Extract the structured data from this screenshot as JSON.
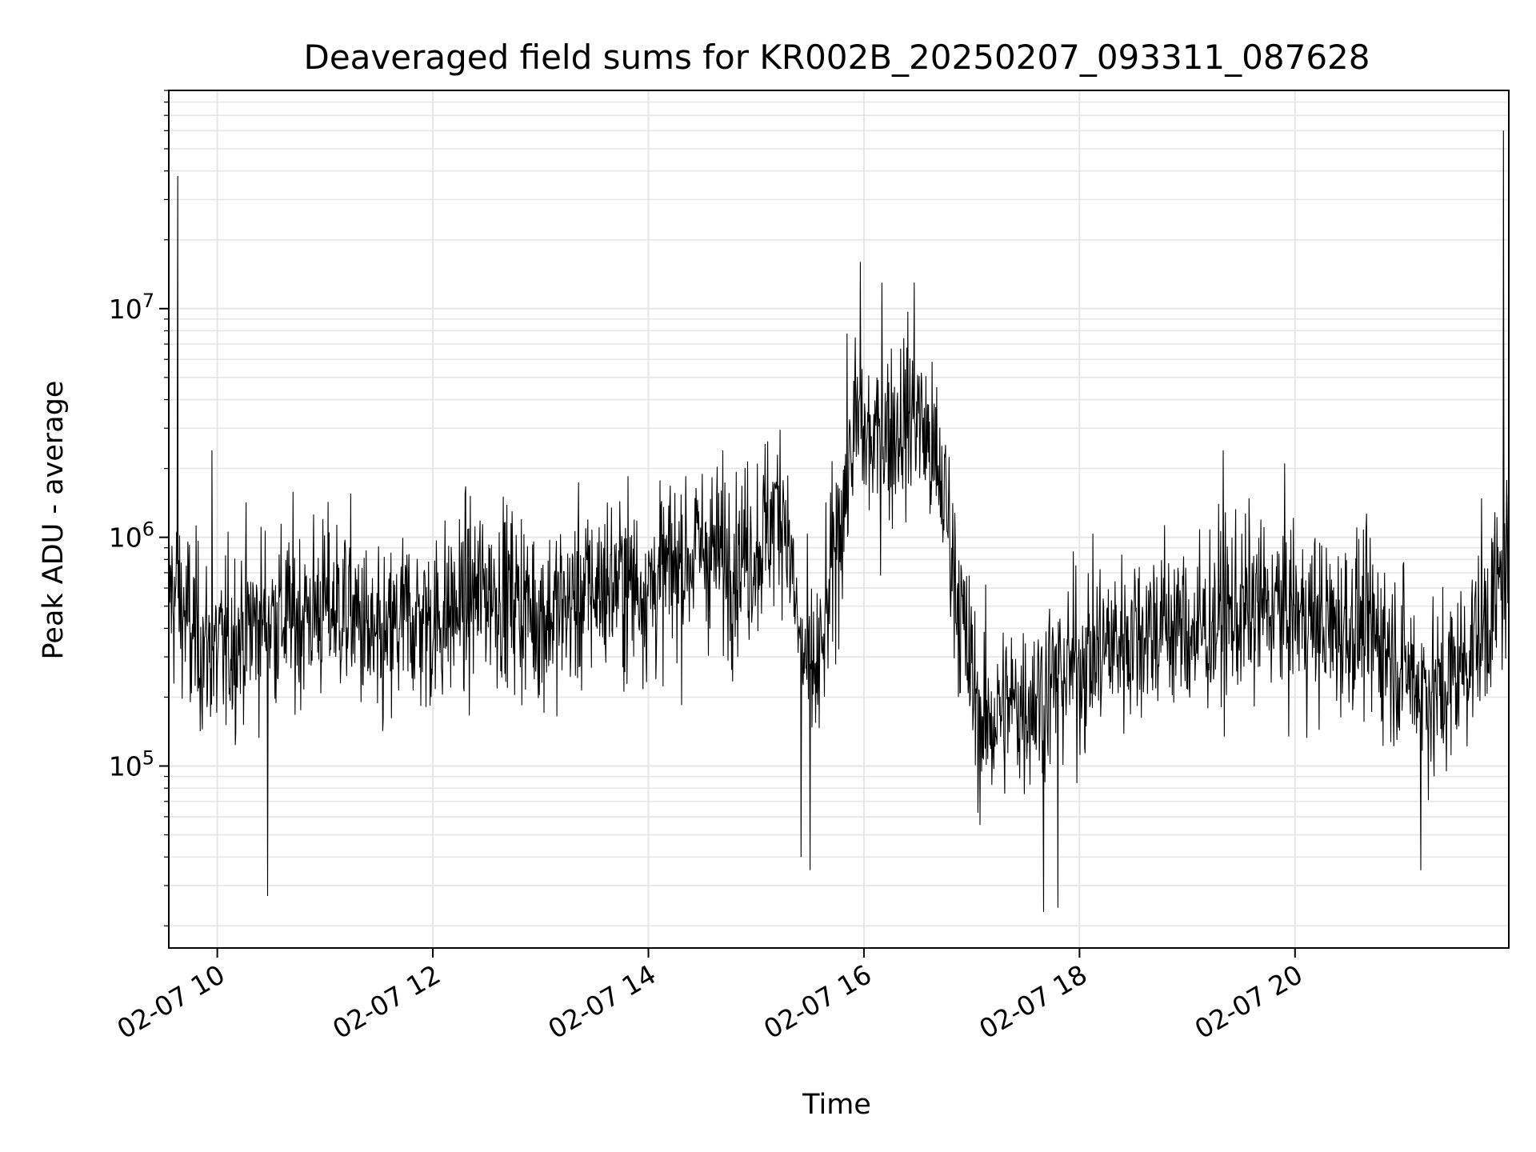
{
  "chart_data": {
    "type": "line",
    "title": "Deaveraged field sums for KR002B_20250207_093311_087628",
    "xlabel": "Time",
    "ylabel": "Peak ADU - average",
    "xlim": [
      "02-07 09:33",
      "02-07 21:59"
    ],
    "ylim": [
      16000,
      90000000
    ],
    "yscale": "log",
    "grid": true,
    "x_ticks": [
      {
        "label": "02-07 10",
        "hour": 10
      },
      {
        "label": "02-07 12",
        "hour": 12
      },
      {
        "label": "02-07 14",
        "hour": 14
      },
      {
        "label": "02-07 16",
        "hour": 16
      },
      {
        "label": "02-07 18",
        "hour": 18
      },
      {
        "label": "02-07 20",
        "hour": 20
      }
    ],
    "y_ticks": [
      {
        "base": "10",
        "exp": "5",
        "value": 100000
      },
      {
        "base": "10",
        "exp": "6",
        "value": 1000000
      },
      {
        "base": "10",
        "exp": "7",
        "value": 10000000
      }
    ],
    "series": [
      {
        "color": "#000000",
        "x": [
          "09:33",
          "09:40",
          "09:50",
          "10:00",
          "10:15",
          "10:30",
          "10:45",
          "11:00",
          "11:15",
          "11:30",
          "11:45",
          "12:00",
          "12:15",
          "12:30",
          "12:45",
          "13:00",
          "13:15",
          "13:30",
          "13:45",
          "14:00",
          "14:15",
          "14:30",
          "14:45",
          "15:00",
          "15:15",
          "15:25",
          "15:35",
          "15:45",
          "15:55",
          "16:05",
          "16:15",
          "16:30",
          "16:45",
          "16:55",
          "17:05",
          "17:20",
          "17:35",
          "17:50",
          "18:05",
          "18:20",
          "18:35",
          "18:50",
          "19:05",
          "19:20",
          "19:35",
          "19:50",
          "20:05",
          "20:20",
          "20:35",
          "20:50",
          "21:05",
          "21:20",
          "21:35",
          "21:50",
          "21:59"
        ],
        "y": [
          600000,
          500000,
          350000,
          300000,
          400000,
          450000,
          450000,
          500000,
          480000,
          300000,
          450000,
          420000,
          500000,
          600000,
          550000,
          450000,
          500000,
          600000,
          650000,
          600000,
          750000,
          900000,
          800000,
          900000,
          1500000,
          300000,
          250000,
          1000000,
          3000000,
          2500000,
          3000000,
          3500000,
          1500000,
          400000,
          150000,
          180000,
          200000,
          250000,
          300000,
          350000,
          400000,
          420000,
          380000,
          450000,
          480000,
          500000,
          450000,
          400000,
          420000,
          350000,
          250000,
          200000,
          300000,
          500000,
          800000
        ]
      }
    ],
    "spikes": [
      {
        "x": "09:38",
        "y": 38000000
      },
      {
        "x": "09:45",
        "y": 190000
      },
      {
        "x": "09:57",
        "y": 2400000
      },
      {
        "x": "10:28",
        "y": 27000
      },
      {
        "x": "15:25",
        "y": 40000
      },
      {
        "x": "15:30",
        "y": 35000
      },
      {
        "x": "15:58",
        "y": 16000000
      },
      {
        "x": "16:10",
        "y": 13000000
      },
      {
        "x": "16:28",
        "y": 13000000
      },
      {
        "x": "17:40",
        "y": 23000
      },
      {
        "x": "17:48",
        "y": 24000
      },
      {
        "x": "19:20",
        "y": 2400000
      },
      {
        "x": "21:10",
        "y": 35000
      },
      {
        "x": "21:56",
        "y": 60000000
      }
    ]
  }
}
